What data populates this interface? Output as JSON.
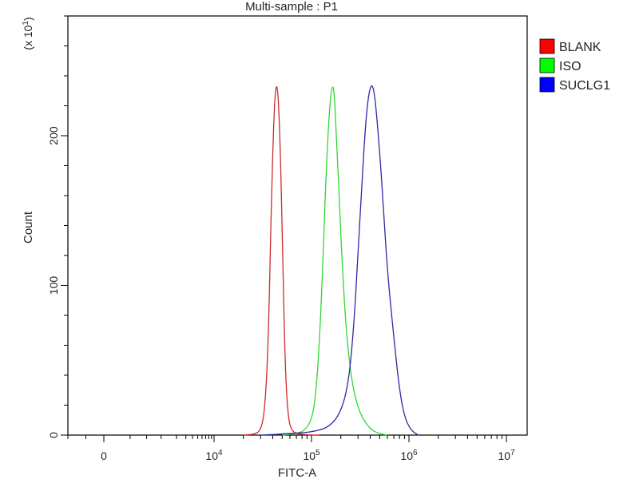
{
  "chart_data": {
    "type": "line",
    "title": "Multi-sample : P1",
    "xlabel": "FITC-A",
    "ylabel": "Count",
    "y_multiplier_label": "(x 10",
    "y_multiplier_exp": "1",
    "y_multiplier_close": ")",
    "x_scale": "biexponential",
    "xlim": [
      -400,
      12000000
    ],
    "ylim": [
      0,
      280
    ],
    "x_ticks": [
      {
        "value": 0,
        "base": "0",
        "exp": ""
      },
      {
        "value": 10000,
        "base": "10",
        "exp": "4"
      },
      {
        "value": 100000,
        "base": "10",
        "exp": "5"
      },
      {
        "value": 1000000,
        "base": "10",
        "exp": "6"
      },
      {
        "value": 10000000,
        "base": "10",
        "exp": "7"
      }
    ],
    "y_ticks": [
      {
        "value": 0,
        "label": "0"
      },
      {
        "value": 100,
        "label": "100"
      },
      {
        "value": 200,
        "label": "200"
      }
    ],
    "grid": false,
    "legend_position": "right",
    "series": [
      {
        "name": "BLANK",
        "color": "#cc2b2b",
        "swatch": "#ff0000",
        "x": [
          20000,
          26000,
          30000,
          33000,
          36000,
          39000,
          42000,
          45000,
          48000,
          51000,
          54000,
          58000,
          63000,
          70000,
          80000,
          100000,
          120000
        ],
        "y": [
          0,
          0.5,
          3,
          15,
          60,
          165,
          230,
          235,
          190,
          110,
          40,
          10,
          3,
          1,
          0.5,
          0,
          0
        ]
      },
      {
        "name": "ISO",
        "color": "#2ed92e",
        "swatch": "#00ff00",
        "x": [
          50000,
          70000,
          85000,
          100000,
          110000,
          120000,
          130000,
          140000,
          150000,
          160000,
          170000,
          180000,
          195000,
          210000,
          230000,
          260000,
          300000,
          350000,
          420000,
          500000,
          600000
        ],
        "y": [
          0,
          1,
          3,
          10,
          25,
          60,
          110,
          170,
          210,
          232,
          233,
          200,
          150,
          105,
          65,
          35,
          18,
          9,
          3,
          1,
          0
        ]
      },
      {
        "name": "SUCLG1",
        "color": "#2a2aa6",
        "swatch": "#0000ff",
        "x": [
          30000,
          60000,
          100000,
          150000,
          200000,
          240000,
          270000,
          300000,
          330000,
          360000,
          390000,
          420000,
          450000,
          500000,
          550000,
          600000,
          700000,
          800000,
          900000,
          1050000,
          1250000
        ],
        "y": [
          0,
          1,
          2,
          5,
          15,
          35,
          70,
          120,
          170,
          210,
          230,
          235,
          225,
          190,
          150,
          110,
          65,
          30,
          12,
          3,
          0
        ]
      }
    ]
  }
}
